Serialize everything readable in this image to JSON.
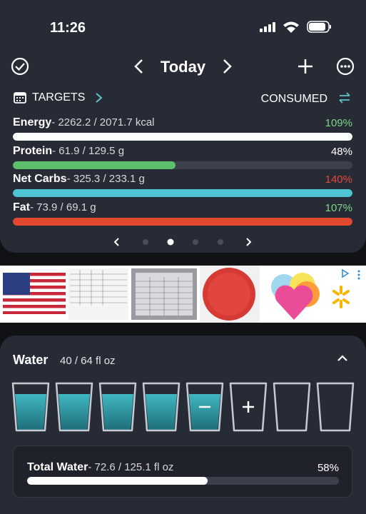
{
  "status_bar": {
    "time": "11:26"
  },
  "header": {
    "title": "Today"
  },
  "targets": {
    "label": "TARGETS",
    "consumed_label": "CONSUMED",
    "rows": [
      {
        "name": "Energy",
        "detail": "- 2262.2 / 2071.7 kcal",
        "percent": {
          "value": 109,
          "label": "109%"
        },
        "bar_color": "#ffffff",
        "percent_color": "#7fd68a"
      },
      {
        "name": "Protein",
        "detail": "- 61.9 / 129.5 g",
        "percent": {
          "value": 48,
          "label": "48%"
        },
        "bar_color": "#5dbf6b",
        "percent_color": "#ffffff"
      },
      {
        "name": "Net Carbs",
        "detail": "- 325.3 / 233.1 g",
        "percent": {
          "value": 140,
          "label": "140%"
        },
        "bar_color": "#4ec3d1",
        "percent_color": "#e5493a"
      },
      {
        "name": "Fat",
        "detail": "- 73.9 / 69.1 g",
        "percent": {
          "value": 107,
          "label": "107%"
        },
        "bar_color": "#e2492e",
        "percent_color": "#7fd68a"
      }
    ]
  },
  "water": {
    "title": "Water",
    "amount": "40 / 64 fl oz",
    "total": {
      "name": "Total Water",
      "detail": "- 72.6 / 125.1 fl oz",
      "percent": {
        "value": 58,
        "label": "58%"
      },
      "bar_color": "#ffffff"
    }
  }
}
